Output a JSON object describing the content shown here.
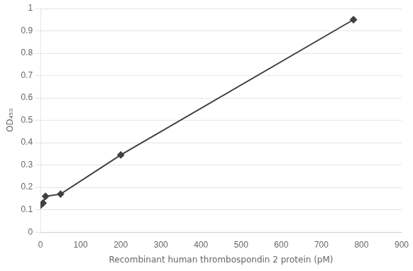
{
  "chart_data": {
    "type": "line",
    "xlabel": "Recombinant human thrombospondin 2 protein (pM)",
    "ylabel": "OD₄₅₀",
    "x": [
      0,
      6.25,
      12.5,
      50,
      200,
      780
    ],
    "values": [
      0.12,
      0.13,
      0.16,
      0.17,
      0.345,
      0.95
    ],
    "color": "#404040",
    "marker": "diamond",
    "xlim": [
      0,
      900
    ],
    "ylim": [
      0,
      1.0
    ],
    "xticks": [
      0,
      100,
      200,
      300,
      400,
      500,
      600,
      700,
      800,
      900
    ],
    "yticks": [
      0,
      0.1,
      0.2,
      0.3,
      0.4,
      0.5,
      0.6,
      0.7,
      0.8,
      0.9,
      1
    ],
    "grid": "y"
  }
}
